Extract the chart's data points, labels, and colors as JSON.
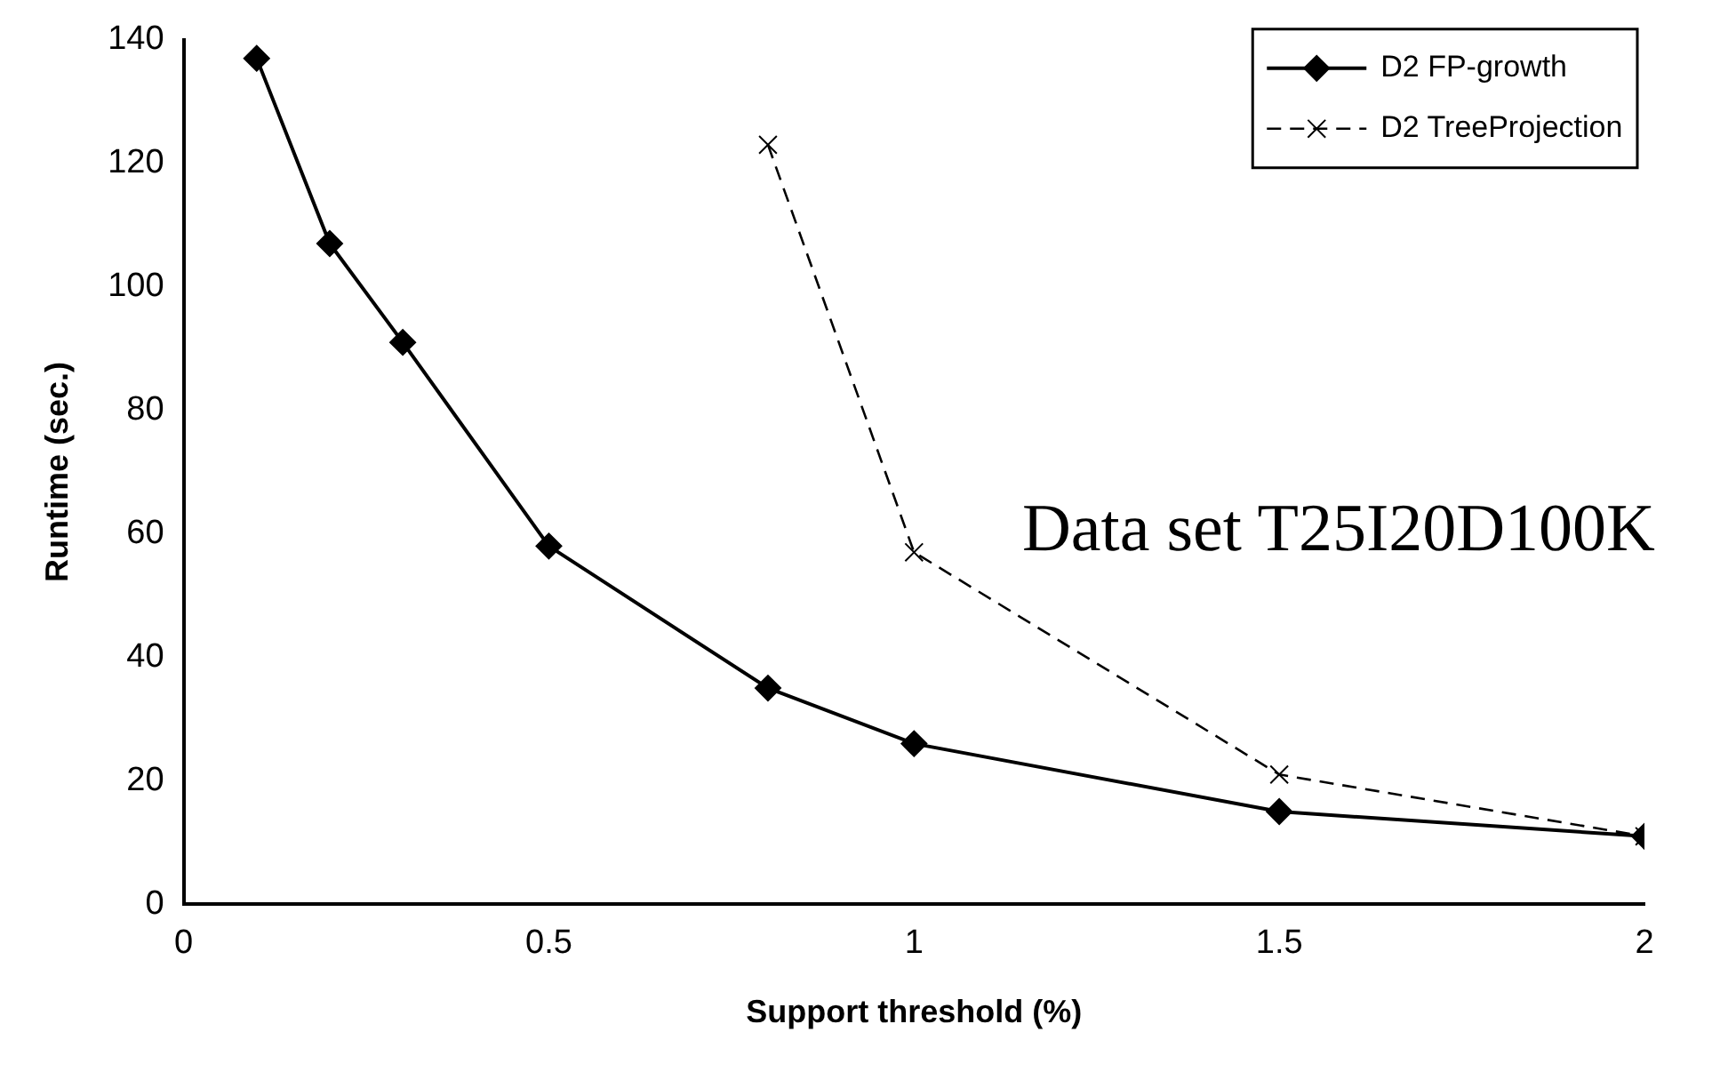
{
  "chart_data": {
    "type": "line",
    "xlabel": "Support threshold (%)",
    "ylabel": "Runtime (sec.)",
    "annotations": [
      "Data set T25I20D100K"
    ],
    "xlim": [
      0,
      2
    ],
    "xticks": [
      0,
      0.5,
      1,
      1.5,
      2
    ],
    "ylim": [
      0,
      140
    ],
    "yticks": [
      0,
      20,
      40,
      60,
      80,
      100,
      120,
      140
    ],
    "grid": false,
    "legend": "top right",
    "series": [
      {
        "name": "D2 FP-growth",
        "color": "#000000",
        "marker": "diamond",
        "line_style": "solid",
        "x": [
          0.1,
          0.2,
          0.3,
          0.5,
          0.8,
          1,
          1.5,
          2
        ],
        "values": [
          137,
          107,
          91,
          58,
          35,
          26,
          15,
          11
        ]
      },
      {
        "name": "D2 TreeProjection",
        "color": "#000000",
        "marker": "cross",
        "line_style": "dashed",
        "x": [
          0.8,
          1,
          1.5,
          2
        ],
        "values": [
          123,
          57,
          21,
          11
        ]
      }
    ]
  }
}
